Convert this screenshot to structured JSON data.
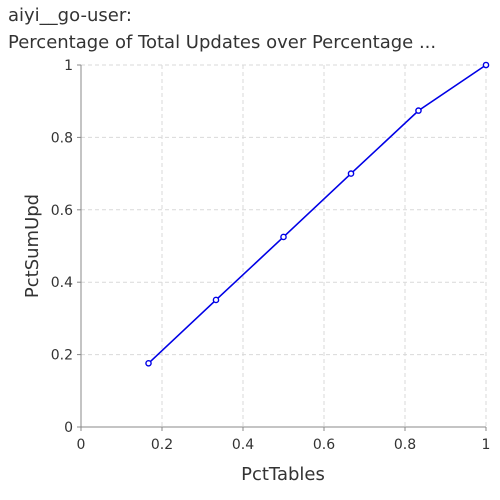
{
  "chart_data": {
    "type": "line",
    "title_lines": [
      "aiyi__go-user:",
      "Percentage of Total Updates over Percentage ..."
    ],
    "xlabel": "PctTables",
    "ylabel": "PctSumUpd",
    "xlim": [
      0,
      1
    ],
    "ylim": [
      0,
      1
    ],
    "x_ticks": [
      0,
      0.2,
      0.4,
      0.6,
      0.8,
      1
    ],
    "y_ticks": [
      0,
      0.2,
      0.4,
      0.6,
      0.8,
      1
    ],
    "x_tick_labels": [
      "0",
      "0.2",
      "0.4",
      "0.6",
      "0.8",
      "1"
    ],
    "y_tick_labels": [
      "0",
      "0.2",
      "0.4",
      "0.6",
      "0.8",
      "1"
    ],
    "grid": true,
    "series": [
      {
        "color": "#0000e6",
        "x": [
          0.1667,
          0.3333,
          0.5,
          0.6667,
          0.8333,
          1.0
        ],
        "y": [
          0.176,
          0.351,
          0.525,
          0.7,
          0.874,
          1.0
        ]
      }
    ]
  }
}
